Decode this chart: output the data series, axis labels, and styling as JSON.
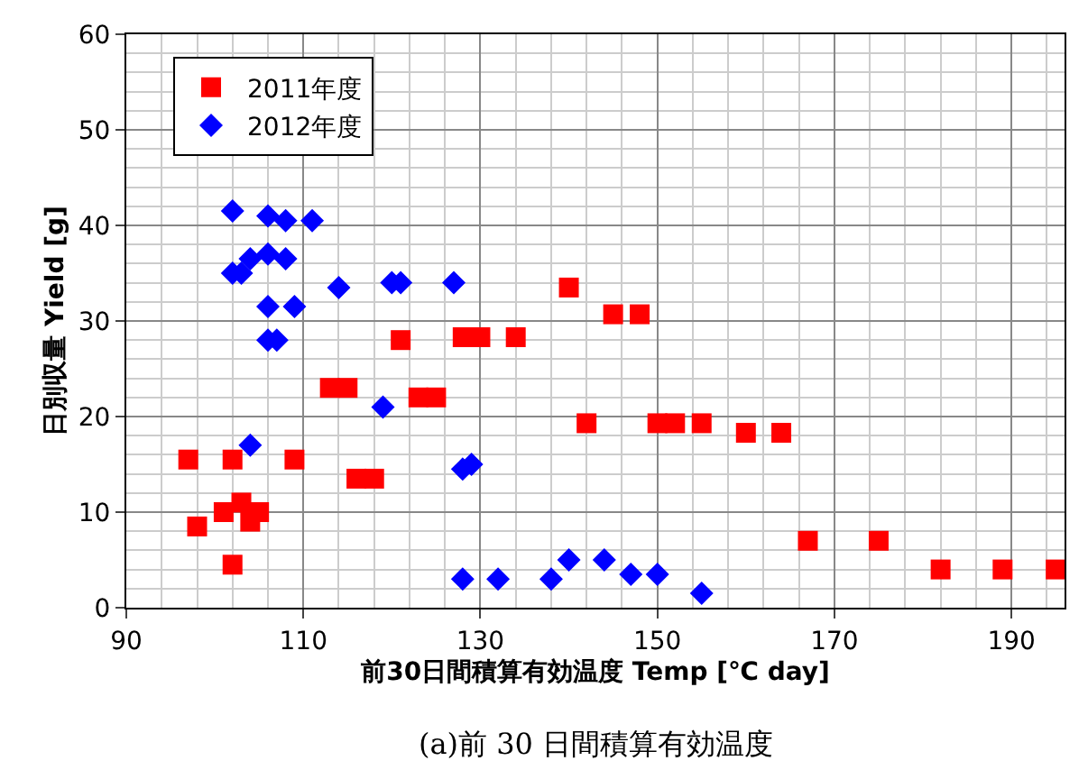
{
  "chart_data": {
    "type": "scatter",
    "xlabel": "前30日間積算有効温度 Temp [℃ day]",
    "ylabel": "日別収量 Yield [g]",
    "annotations": [
      "(a)前 30 日間積算有効温度"
    ],
    "xlim": [
      90,
      196
    ],
    "xticks": [
      90,
      110,
      130,
      150,
      170,
      190
    ],
    "ylim": [
      0,
      60
    ],
    "yticks": [
      0,
      10,
      20,
      30,
      40,
      50,
      60
    ],
    "grid": true,
    "legend": "top left",
    "series": [
      {
        "name": "2011年度",
        "color": "#ff0000",
        "marker": "square",
        "x": [
          97,
          98,
          101,
          102,
          102,
          103,
          104,
          105,
          109,
          113,
          115,
          116,
          118,
          121,
          123,
          125,
          128,
          130,
          134,
          140,
          142,
          145,
          148,
          150,
          152,
          155,
          160,
          164,
          167,
          175,
          182,
          189,
          195
        ],
        "values": [
          15.5,
          8.5,
          10,
          15.5,
          4.5,
          11,
          9,
          10,
          15.5,
          23,
          23,
          13.5,
          13.5,
          28,
          22,
          22,
          28.3,
          28.3,
          28.3,
          33.5,
          19.3,
          30.7,
          30.7,
          19.3,
          19.3,
          19.3,
          18.3,
          18.3,
          7,
          7,
          4,
          4,
          4
        ]
      },
      {
        "name": "2012年度",
        "color": "#0000ff",
        "marker": "diamond",
        "x": [
          102,
          102,
          103,
          104,
          104,
          106,
          106,
          106,
          106,
          107,
          108,
          109,
          108,
          111,
          114,
          119,
          120,
          121,
          127,
          128,
          129,
          128,
          132,
          138,
          140,
          144,
          147,
          150,
          155
        ],
        "values": [
          41.5,
          35,
          35,
          36.5,
          17,
          37,
          41,
          31.5,
          28,
          28,
          36.5,
          31.5,
          40.5,
          40.5,
          33.5,
          21,
          34,
          34,
          34,
          14.5,
          15,
          3,
          3,
          3,
          5,
          5,
          3.5,
          3.5,
          1.5
        ]
      }
    ]
  }
}
